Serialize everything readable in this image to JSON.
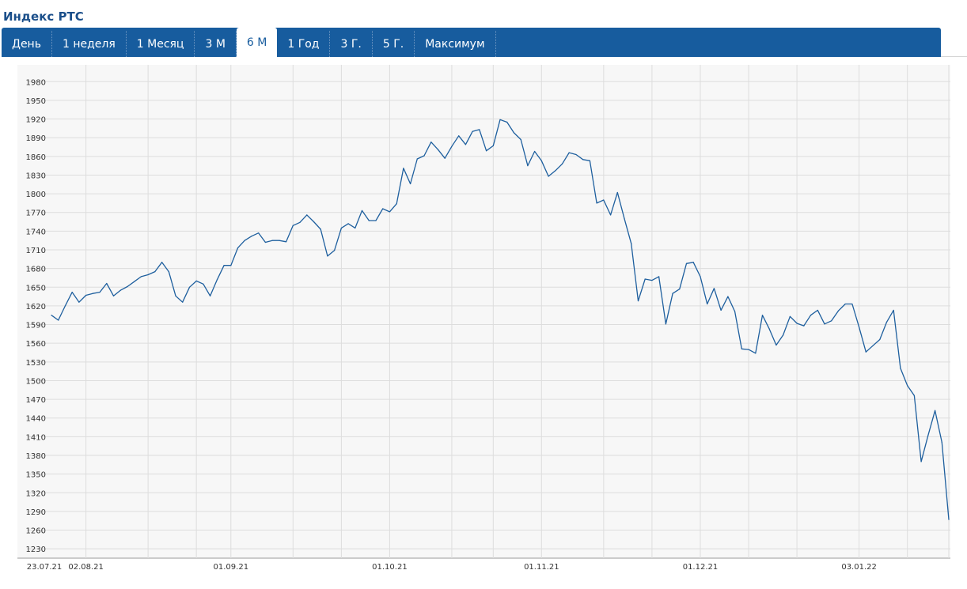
{
  "title": "Индекс РТС",
  "tabs": [
    {
      "label": "День",
      "active": false
    },
    {
      "label": "1 неделя",
      "active": false
    },
    {
      "label": "1 Месяц",
      "active": false
    },
    {
      "label": "3 М",
      "active": false
    },
    {
      "label": "6 М",
      "active": true
    },
    {
      "label": "1 Год",
      "active": false
    },
    {
      "label": "3 Г.",
      "active": false
    },
    {
      "label": "5 Г.",
      "active": false
    },
    {
      "label": "Максимум",
      "active": false
    }
  ],
  "colors": {
    "tabbar": "#175c9e",
    "line": "#1e5f9e",
    "grid": "#dddddd",
    "plot_bg": "#f7f7f7"
  },
  "chart_data": {
    "type": "line",
    "title": "",
    "xlabel": "",
    "ylabel": "",
    "ylim": [
      1200,
      2000
    ],
    "yticks": [
      1230,
      1260,
      1290,
      1320,
      1350,
      1380,
      1410,
      1440,
      1470,
      1500,
      1530,
      1560,
      1590,
      1620,
      1650,
      1680,
      1710,
      1740,
      1770,
      1800,
      1830,
      1860,
      1890,
      1920,
      1950,
      1980
    ],
    "xticks": [
      "23.07.21",
      "02.08.21",
      "01.09.21",
      "01.10.21",
      "01.11.21",
      "01.12.21",
      "03.01.22"
    ],
    "xtick_index": [
      0,
      5,
      26,
      49,
      71,
      94,
      117
    ],
    "grid": true,
    "series": [
      {
        "name": "",
        "values": [
          1605,
          1597,
          1620,
          1642,
          1626,
          1637,
          1640,
          1642,
          1656,
          1636,
          1645,
          1651,
          1659,
          1667,
          1670,
          1675,
          1690,
          1675,
          1636,
          1626,
          1650,
          1660,
          1655,
          1636,
          1662,
          1685,
          1685,
          1713,
          1725,
          1732,
          1737,
          1722,
          1725,
          1725,
          1723,
          1749,
          1754,
          1766,
          1755,
          1743,
          1700,
          1709,
          1745,
          1752,
          1745,
          1773,
          1757,
          1757,
          1776,
          1771,
          1784,
          1841,
          1816,
          1856,
          1861,
          1883,
          1871,
          1857,
          1876,
          1893,
          1879,
          1900,
          1903,
          1869,
          1877,
          1919,
          1915,
          1898,
          1887,
          1845,
          1868,
          1853,
          1828,
          1837,
          1848,
          1866,
          1863,
          1855,
          1853,
          1785,
          1790,
          1766,
          1802,
          1760,
          1720,
          1628,
          1663,
          1661,
          1667,
          1591,
          1640,
          1647,
          1688,
          1690,
          1667,
          1623,
          1648,
          1613,
          1635,
          1611,
          1551,
          1550,
          1544,
          1605,
          1583,
          1557,
          1573,
          1603,
          1592,
          1588,
          1605,
          1613,
          1591,
          1596,
          1612,
          1623,
          1623,
          1586,
          1546,
          1556,
          1566,
          1594,
          1613,
          1520,
          1492,
          1476,
          1370,
          1412,
          1452,
          1401,
          1277
        ]
      }
    ]
  }
}
